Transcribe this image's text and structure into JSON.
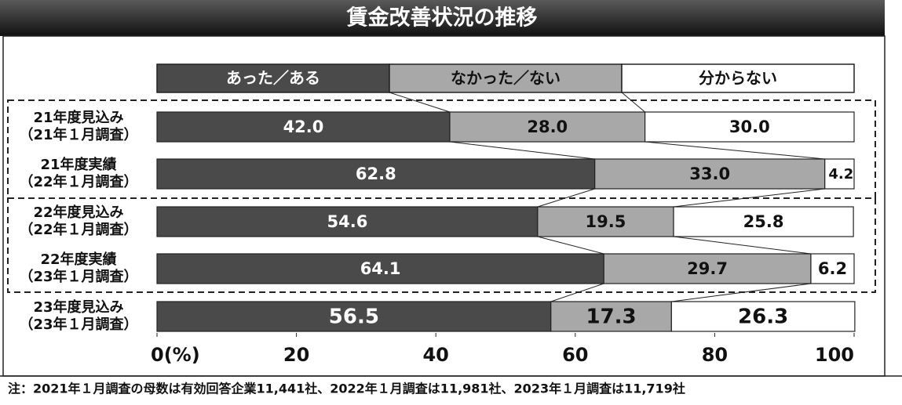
{
  "chart_data": {
    "type": "stacked-bar-horizontal",
    "title": "賃金改善状況の推移",
    "categories": [
      [
        "21年度見込み",
        "（21年１月調査）"
      ],
      [
        "21年度実績",
        "（22年１月調査）"
      ],
      [
        "22年度見込み",
        "（22年１月調査）"
      ],
      [
        "22年度実績",
        "（23年１月調査）"
      ],
      [
        "23年度見込み",
        "（23年１月調査）"
      ]
    ],
    "series": [
      {
        "name": "あった／ある",
        "color": "#4a4a4a",
        "values": [
          42.0,
          62.8,
          54.6,
          64.1,
          56.5
        ],
        "value_labels": [
          "42.0",
          "62.8",
          "54.6",
          "64.1",
          "56.5"
        ]
      },
      {
        "name": "なかった／ない",
        "color": "#a8a8a8",
        "values": [
          28.0,
          33.0,
          19.5,
          29.7,
          17.3
        ],
        "value_labels": [
          "28.0",
          "33.0",
          "19.5",
          "29.7",
          "17.3"
        ]
      },
      {
        "name": "分からない",
        "color": "#ffffff",
        "values": [
          30.0,
          4.2,
          25.8,
          6.2,
          26.3
        ],
        "value_labels": [
          "30.0",
          "4.2",
          "25.8",
          "6.2",
          "26.3"
        ]
      }
    ],
    "xlim": [
      0,
      100
    ],
    "xticks": [
      {
        "value": 0,
        "label": "0(%)"
      },
      20,
      40,
      60,
      80,
      100
    ],
    "note": "注：2021年１月調査の母数は有効回答企業11,441社、2022年１月調査は11,981社、2023年１月調査は11,719社"
  }
}
